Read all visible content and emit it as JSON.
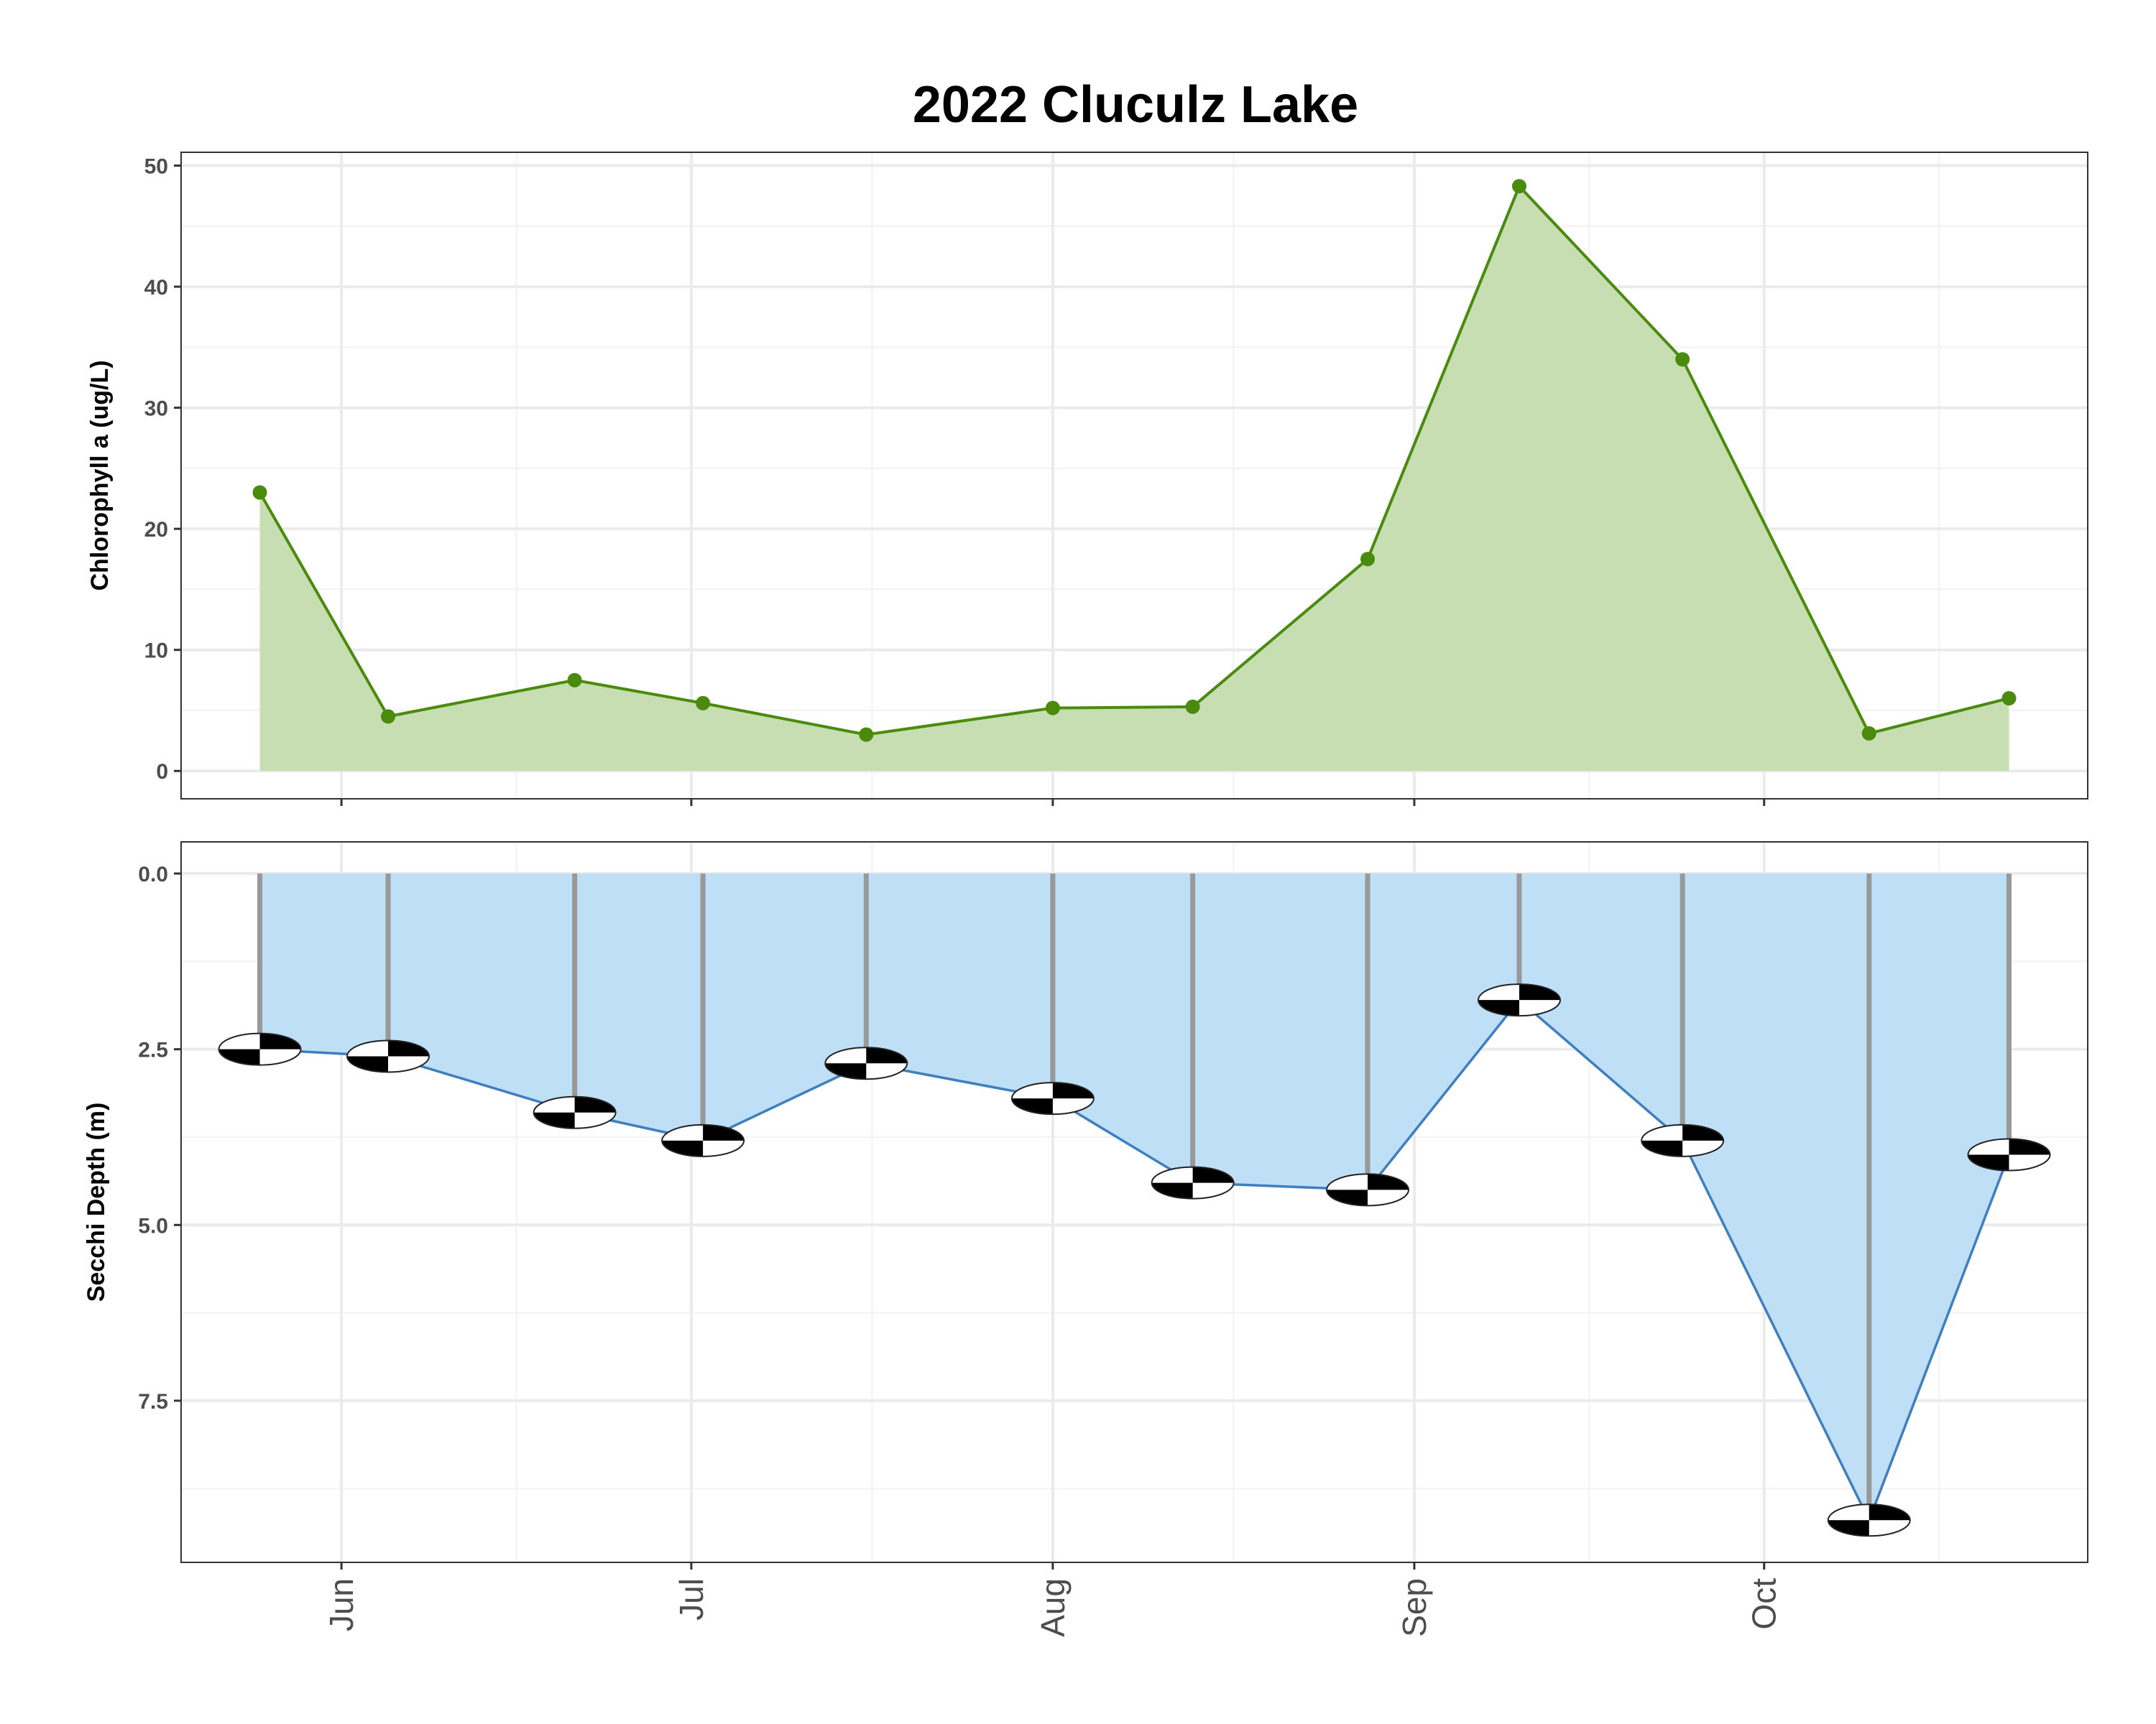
{
  "chart_data": [
    {
      "type": "area",
      "title": "2022 Cluculz Lake",
      "xlabel": "",
      "ylabel": "Chlorophyll a (ug/L)",
      "ylim": [
        0,
        50
      ],
      "yticks": [
        "0",
        "10",
        "20",
        "30",
        "40",
        "50"
      ],
      "xticks": [
        "Jun",
        "Jul",
        "Aug",
        "Sep",
        "Oct"
      ],
      "grid": true,
      "colors": {
        "line": "#4a8a0c",
        "fill": "#c7ddb2",
        "point": "#4a8a0c"
      },
      "series": [
        {
          "x": [
            "2022-05-25",
            "2022-06-05",
            "2022-06-21",
            "2022-07-02",
            "2022-07-16",
            "2022-08-01",
            "2022-08-13",
            "2022-08-28",
            "2022-09-10",
            "2022-09-24",
            "2022-10-10",
            "2022-10-22"
          ],
          "values": [
            23.0,
            4.5,
            7.5,
            5.6,
            3.0,
            5.2,
            5.3,
            17.5,
            48.3,
            34.0,
            3.1,
            6.0
          ]
        }
      ]
    },
    {
      "type": "area",
      "title": "",
      "xlabel": "",
      "ylabel": "Secchi Depth (m)",
      "ylim": [
        0,
        9.8
      ],
      "y_reversed": true,
      "yticks": [
        "0.0",
        "2.5",
        "5.0",
        "7.5"
      ],
      "xticks": [
        "Jun",
        "Jul",
        "Aug",
        "Sep",
        "Oct"
      ],
      "grid": true,
      "colors": {
        "line": "#3f7fbd",
        "fill": "#bfdff6",
        "drop_line": "#999999",
        "disk_black": "#000000",
        "disk_white": "#ffffff"
      },
      "series": [
        {
          "x": [
            "2022-05-25",
            "2022-06-05",
            "2022-06-21",
            "2022-07-02",
            "2022-07-16",
            "2022-08-01",
            "2022-08-13",
            "2022-08-28",
            "2022-09-10",
            "2022-09-24",
            "2022-10-10",
            "2022-10-22"
          ],
          "values": [
            2.5,
            2.6,
            3.4,
            3.8,
            2.7,
            3.2,
            4.4,
            4.5,
            1.8,
            3.8,
            9.2,
            4.0
          ]
        }
      ]
    }
  ]
}
